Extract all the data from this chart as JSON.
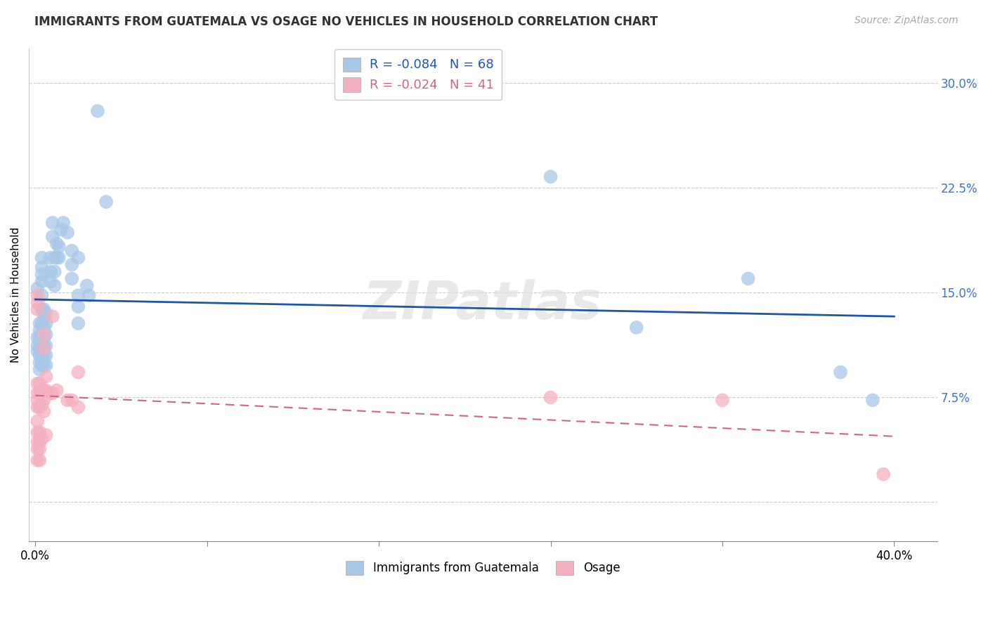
{
  "title": "IMMIGRANTS FROM GUATEMALA VS OSAGE NO VEHICLES IN HOUSEHOLD CORRELATION CHART",
  "source": "Source: ZipAtlas.com",
  "ylabel": "No Vehicles in Household",
  "xlim": [
    -0.003,
    0.42
  ],
  "ylim": [
    -0.028,
    0.325
  ],
  "blue_R": "-0.084",
  "blue_N": "68",
  "pink_R": "-0.024",
  "pink_N": "41",
  "legend1_label": "Immigrants from Guatemala",
  "legend2_label": "Osage",
  "watermark": "ZIPatlas",
  "blue_color": "#a8c8e8",
  "pink_color": "#f4b0c0",
  "blue_line_color": "#2255aa",
  "pink_line_color": "#cc6688",
  "ytick_vals": [
    0.0,
    0.075,
    0.15,
    0.225,
    0.3
  ],
  "ytick_labels": [
    "",
    "7.5%",
    "15.0%",
    "22.5%",
    "30.0%"
  ],
  "xtick_vals": [
    0.0,
    0.08,
    0.16,
    0.24,
    0.32,
    0.4
  ],
  "xtick_labels": [
    "0.0%",
    "",
    "",
    "",
    "",
    "40.0%"
  ],
  "blue_scatter": [
    [
      0.001,
      0.153
    ],
    [
      0.001,
      0.118
    ],
    [
      0.001,
      0.112
    ],
    [
      0.001,
      0.108
    ],
    [
      0.002,
      0.128
    ],
    [
      0.002,
      0.123
    ],
    [
      0.002,
      0.118
    ],
    [
      0.002,
      0.115
    ],
    [
      0.002,
      0.11
    ],
    [
      0.002,
      0.105
    ],
    [
      0.002,
      0.1
    ],
    [
      0.002,
      0.095
    ],
    [
      0.003,
      0.175
    ],
    [
      0.003,
      0.168
    ],
    [
      0.003,
      0.163
    ],
    [
      0.003,
      0.158
    ],
    [
      0.003,
      0.148
    ],
    [
      0.003,
      0.138
    ],
    [
      0.003,
      0.128
    ],
    [
      0.003,
      0.12
    ],
    [
      0.003,
      0.115
    ],
    [
      0.003,
      0.108
    ],
    [
      0.003,
      0.102
    ],
    [
      0.003,
      0.098
    ],
    [
      0.004,
      0.138
    ],
    [
      0.004,
      0.132
    ],
    [
      0.004,
      0.125
    ],
    [
      0.004,
      0.118
    ],
    [
      0.004,
      0.112
    ],
    [
      0.004,
      0.105
    ],
    [
      0.004,
      0.098
    ],
    [
      0.005,
      0.135
    ],
    [
      0.005,
      0.128
    ],
    [
      0.005,
      0.12
    ],
    [
      0.005,
      0.112
    ],
    [
      0.005,
      0.105
    ],
    [
      0.005,
      0.098
    ],
    [
      0.007,
      0.175
    ],
    [
      0.007,
      0.165
    ],
    [
      0.007,
      0.158
    ],
    [
      0.008,
      0.2
    ],
    [
      0.008,
      0.19
    ],
    [
      0.009,
      0.175
    ],
    [
      0.009,
      0.165
    ],
    [
      0.009,
      0.155
    ],
    [
      0.01,
      0.185
    ],
    [
      0.01,
      0.175
    ],
    [
      0.011,
      0.183
    ],
    [
      0.011,
      0.175
    ],
    [
      0.012,
      0.195
    ],
    [
      0.013,
      0.2
    ],
    [
      0.015,
      0.193
    ],
    [
      0.017,
      0.18
    ],
    [
      0.017,
      0.17
    ],
    [
      0.017,
      0.16
    ],
    [
      0.02,
      0.175
    ],
    [
      0.02,
      0.148
    ],
    [
      0.02,
      0.14
    ],
    [
      0.02,
      0.128
    ],
    [
      0.024,
      0.155
    ],
    [
      0.025,
      0.148
    ],
    [
      0.029,
      0.28
    ],
    [
      0.033,
      0.215
    ],
    [
      0.24,
      0.233
    ],
    [
      0.28,
      0.125
    ],
    [
      0.332,
      0.16
    ],
    [
      0.375,
      0.093
    ],
    [
      0.39,
      0.073
    ]
  ],
  "pink_scatter": [
    [
      0.001,
      0.148
    ],
    [
      0.001,
      0.143
    ],
    [
      0.001,
      0.138
    ],
    [
      0.001,
      0.085
    ],
    [
      0.001,
      0.078
    ],
    [
      0.001,
      0.073
    ],
    [
      0.001,
      0.068
    ],
    [
      0.001,
      0.058
    ],
    [
      0.001,
      0.05
    ],
    [
      0.001,
      0.043
    ],
    [
      0.001,
      0.038
    ],
    [
      0.001,
      0.03
    ],
    [
      0.002,
      0.085
    ],
    [
      0.002,
      0.078
    ],
    [
      0.002,
      0.068
    ],
    [
      0.002,
      0.05
    ],
    [
      0.002,
      0.043
    ],
    [
      0.002,
      0.038
    ],
    [
      0.002,
      0.03
    ],
    [
      0.003,
      0.08
    ],
    [
      0.003,
      0.07
    ],
    [
      0.003,
      0.045
    ],
    [
      0.004,
      0.12
    ],
    [
      0.004,
      0.11
    ],
    [
      0.004,
      0.08
    ],
    [
      0.004,
      0.073
    ],
    [
      0.004,
      0.065
    ],
    [
      0.005,
      0.09
    ],
    [
      0.005,
      0.08
    ],
    [
      0.005,
      0.048
    ],
    [
      0.007,
      0.078
    ],
    [
      0.008,
      0.133
    ],
    [
      0.008,
      0.078
    ],
    [
      0.01,
      0.08
    ],
    [
      0.015,
      0.073
    ],
    [
      0.017,
      0.073
    ],
    [
      0.02,
      0.093
    ],
    [
      0.02,
      0.068
    ],
    [
      0.24,
      0.075
    ],
    [
      0.32,
      0.073
    ],
    [
      0.395,
      0.02
    ]
  ]
}
